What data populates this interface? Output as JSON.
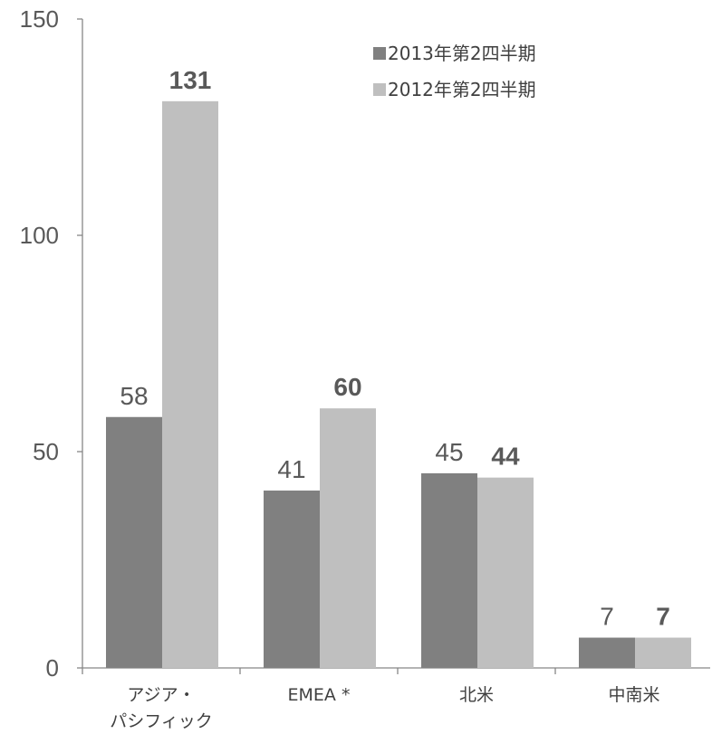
{
  "chart_data": {
    "type": "bar",
    "categories": [
      "アジア・\nパシフィック",
      "EMEA *",
      "北米",
      "中南米"
    ],
    "series": [
      {
        "name": "2013年第2四半期",
        "values": [
          58,
          41,
          45,
          7
        ],
        "color": "#808080",
        "label_bold": false
      },
      {
        "name": "2012年第2四半期",
        "values": [
          131,
          60,
          44,
          7
        ],
        "color": "#bfbfbf",
        "label_bold": true
      }
    ],
    "yticks": [
      0,
      50,
      100,
      150
    ],
    "ylim": [
      0,
      150
    ],
    "title": "",
    "xlabel": "",
    "ylabel": "",
    "grid": false,
    "legend_position": "top-right"
  }
}
